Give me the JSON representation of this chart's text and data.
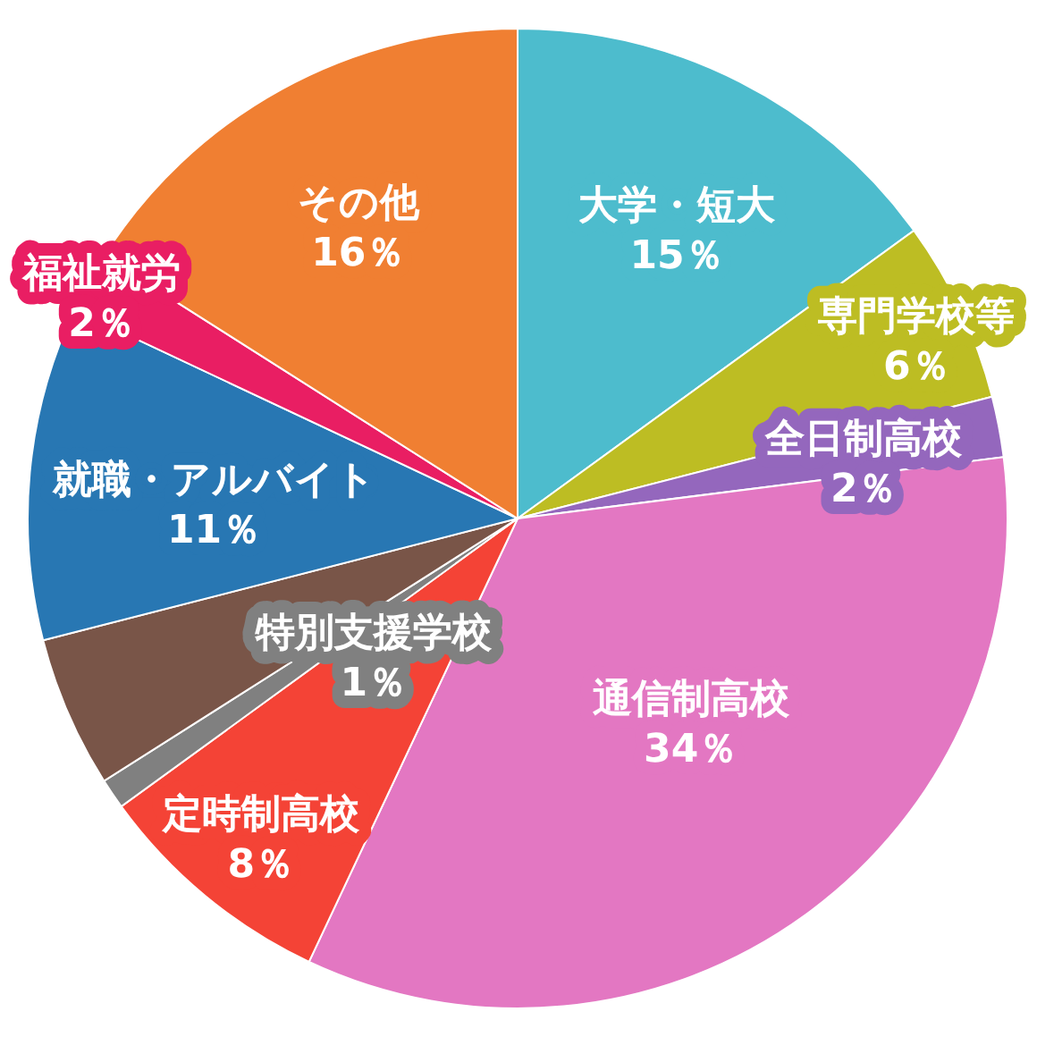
{
  "chart_data": {
    "type": "pie",
    "categories": [
      "大学・短大",
      "専門学校等",
      "全日制高校",
      "通信制高校",
      "定時制高校",
      "特別支援学校",
      null,
      "就職・アルバイト",
      "福祉就労",
      "その他"
    ],
    "values": [
      15,
      6,
      2,
      34,
      8,
      1,
      5,
      11,
      2,
      16
    ],
    "value_labels": [
      "15％",
      "6％",
      "2％",
      "34％",
      "8％",
      "1％",
      null,
      "11％",
      "2％",
      "16％"
    ],
    "colors": [
      "#4dbccd",
      "#bdbd23",
      "#9467bd",
      "#e377c2",
      "#f44336",
      "#808080",
      "#795548",
      "#2877b3",
      "#e91e63",
      "#f07f32"
    ]
  }
}
